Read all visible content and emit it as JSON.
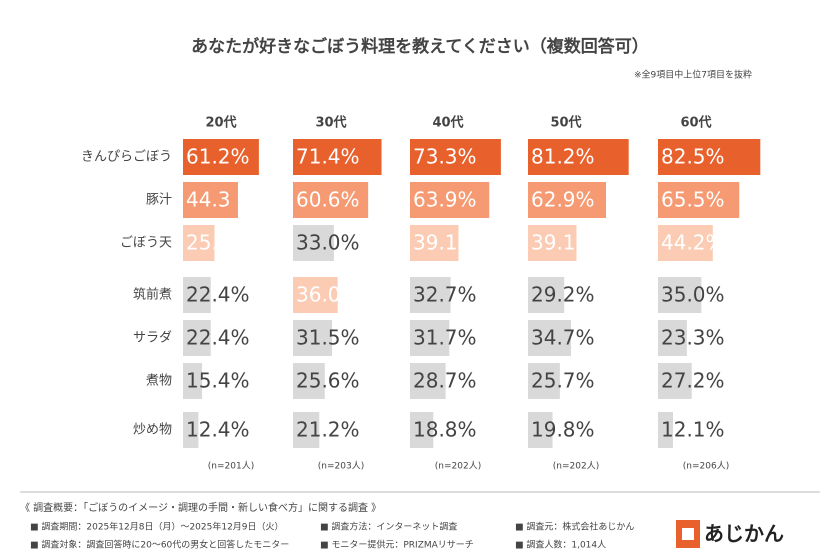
{
  "chart_data": {
    "type": "bar",
    "orientation": "horizontal",
    "title": "あなたが好きなごぼう料理を教えてください（複数回答可）",
    "subtitle": "※全9項目中上位7項目を抜粋",
    "categories": [
      "きんぴらごぼう",
      "豚汁",
      "ごぼう天",
      "筑前煮",
      "サラダ",
      "煮物",
      "炒め物"
    ],
    "xlim": [
      0,
      100
    ],
    "series": [
      {
        "name": "20代",
        "n": "(n=201人)",
        "values": [
          61.2,
          44.3,
          25.4,
          22.4,
          22.4,
          15.4,
          12.4
        ],
        "value_labels": [
          "61.2%",
          "44.3",
          "25.4%",
          "22.4%",
          "22.4%",
          "15.4%",
          "12.4%"
        ],
        "colors": [
          "#e8612c",
          "#f59a72",
          "#fbcbb4",
          "#d9d9d9",
          "#d9d9d9",
          "#d9d9d9",
          "#d9d9d9"
        ]
      },
      {
        "name": "30代",
        "n": "(n=203人)",
        "values": [
          71.4,
          60.6,
          33.0,
          36.0,
          31.5,
          25.6,
          21.2
        ],
        "value_labels": [
          "71.4%",
          "60.6%",
          "33.0%",
          "36.0%",
          "31.5%",
          "25.6%",
          "21.2%"
        ],
        "colors": [
          "#e8612c",
          "#f59a72",
          "#d9d9d9",
          "#fbcbb4",
          "#d9d9d9",
          "#d9d9d9",
          "#d9d9d9"
        ]
      },
      {
        "name": "40代",
        "n": "(n=202人)",
        "values": [
          73.3,
          63.9,
          39.1,
          32.7,
          31.7,
          28.7,
          18.8
        ],
        "value_labels": [
          "73.3%",
          "63.9%",
          "39.1%",
          "32.7%",
          "31.7%",
          "28.7%",
          "18.8%"
        ],
        "colors": [
          "#e8612c",
          "#f59a72",
          "#fbcbb4",
          "#d9d9d9",
          "#d9d9d9",
          "#d9d9d9",
          "#d9d9d9"
        ]
      },
      {
        "name": "50代",
        "n": "(n=202人)",
        "values": [
          81.2,
          62.9,
          39.1,
          29.2,
          34.7,
          25.7,
          19.8
        ],
        "value_labels": [
          "81.2%",
          "62.9%",
          "39.1%",
          "29.2%",
          "34.7%",
          "25.7%",
          "19.8%"
        ],
        "colors": [
          "#e8612c",
          "#f59a72",
          "#fbcbb4",
          "#d9d9d9",
          "#d9d9d9",
          "#d9d9d9",
          "#d9d9d9"
        ]
      },
      {
        "name": "60代",
        "n": "(n=206人)",
        "values": [
          82.5,
          65.5,
          44.2,
          35.0,
          23.3,
          27.2,
          12.1
        ],
        "value_labels": [
          "82.5%",
          "65.5%",
          "44.2%",
          "35.0%",
          "23.3%",
          "27.2%",
          "12.1%"
        ],
        "colors": [
          "#e8612c",
          "#f59a72",
          "#fbcbb4",
          "#d9d9d9",
          "#d9d9d9",
          "#d9d9d9",
          "#d9d9d9"
        ]
      }
    ]
  },
  "footer": {
    "heading": "《 調査概要：「ごぼうのイメージ・調理の手間・新しい食べ方」に関する調査 》",
    "items": [
      "■ 調査期間：2025年12月8日（月）～2025年12月9日（火）",
      "■ 調査方法：インターネット調査",
      "■ 調査元：株式会社あじかん",
      "■ 調査対象：調査回答時に20～60代の男女と回答したモニター",
      "■ モニター提供元：PRIZMAリサーチ",
      "■ 調査人数：1,014人"
    ]
  },
  "logo": "あじかん"
}
